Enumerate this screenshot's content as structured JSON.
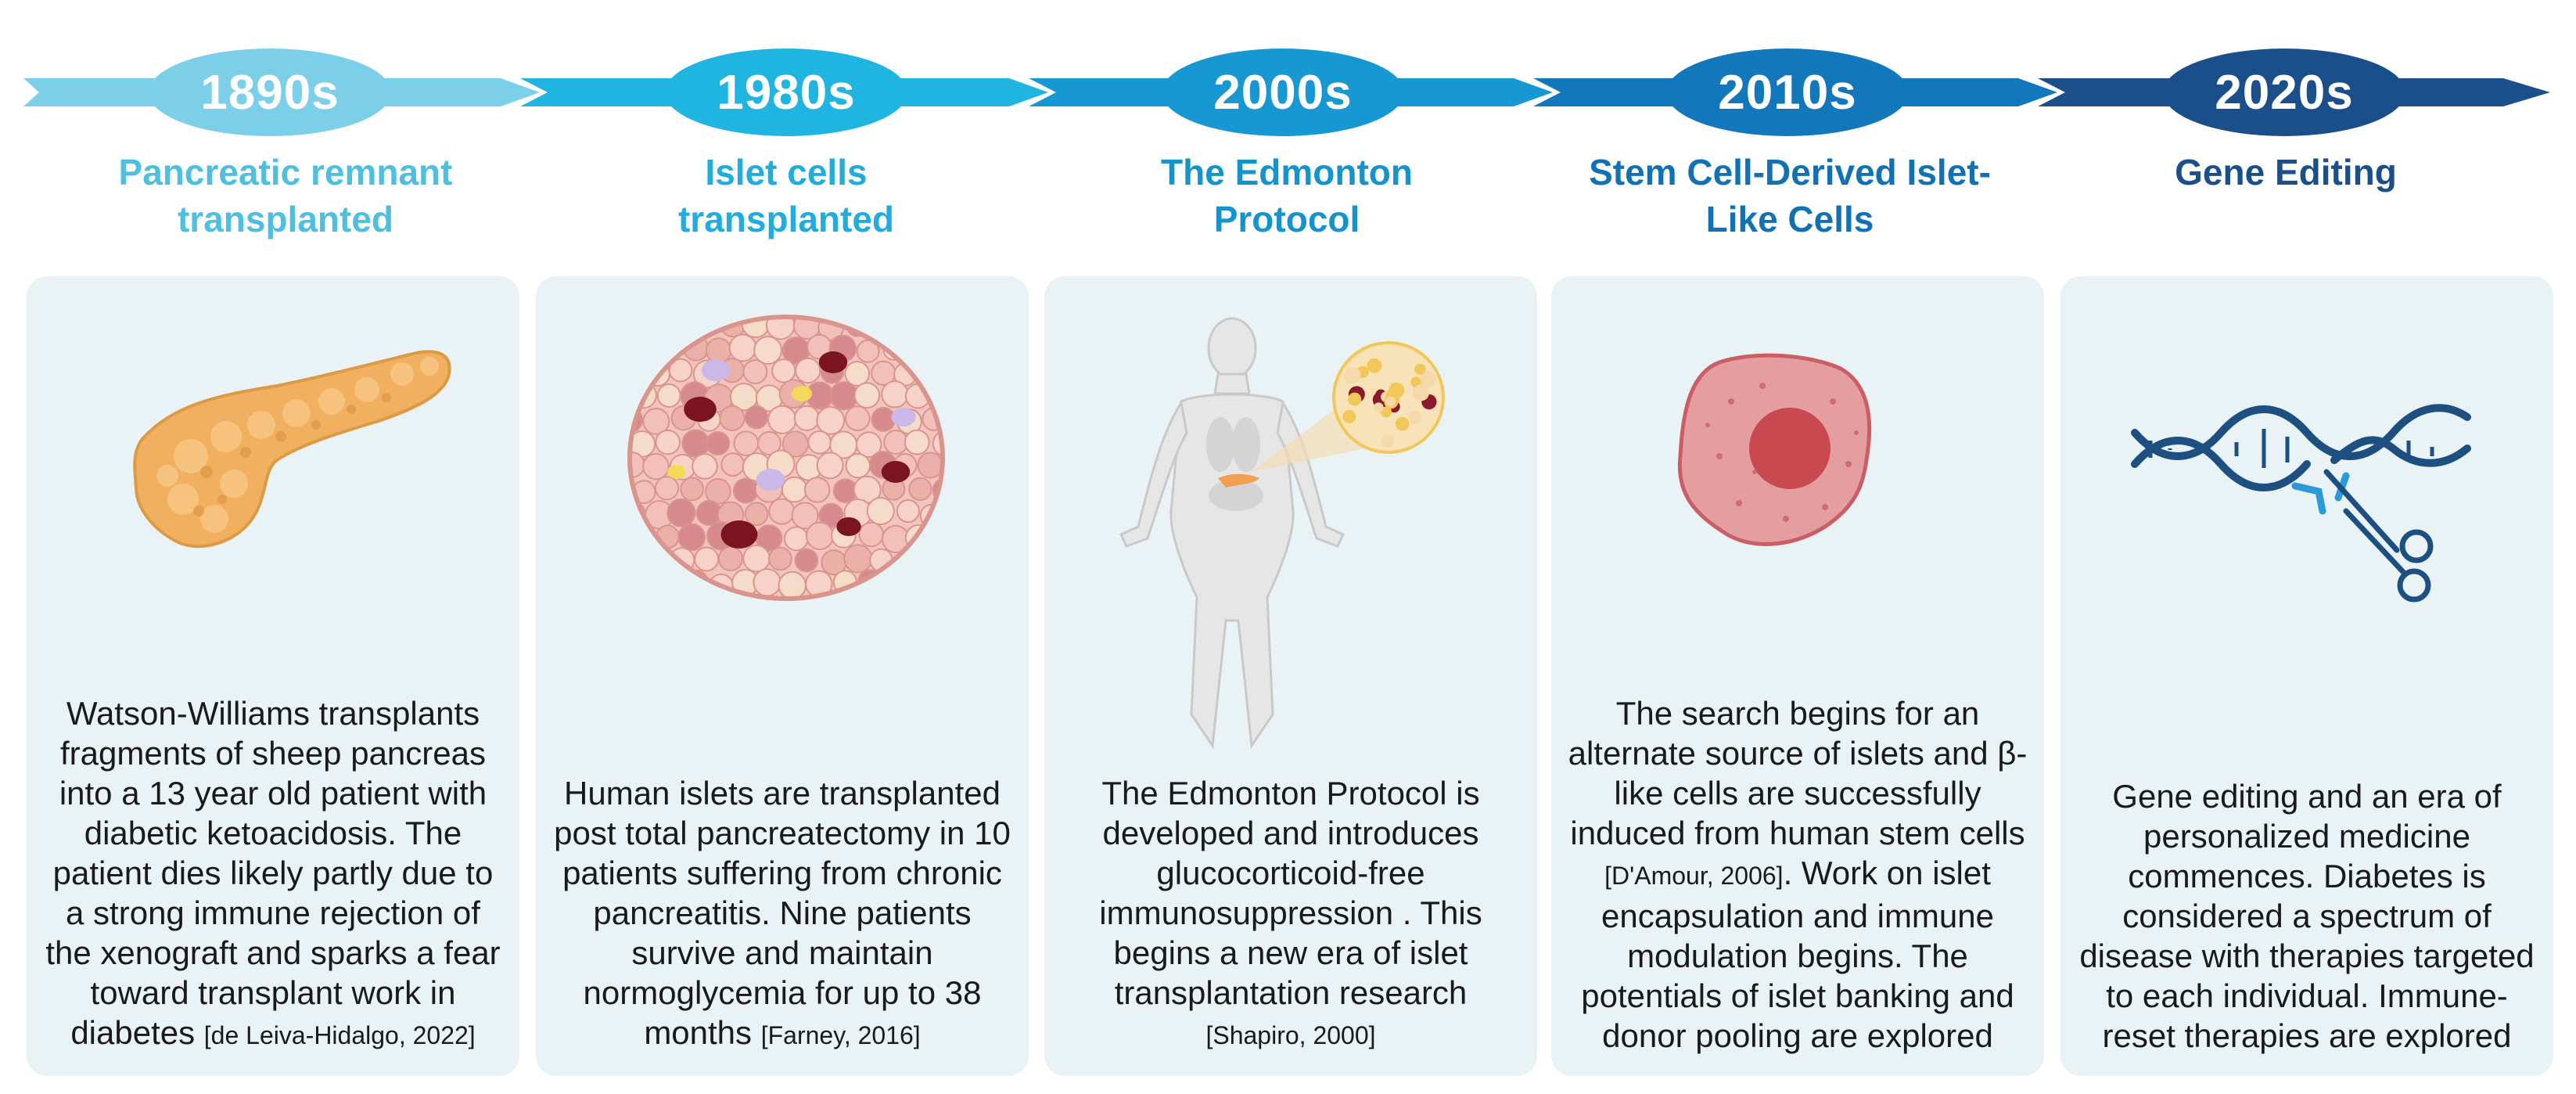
{
  "periods": [
    {
      "year": "1890s",
      "title": "Pancreatic remnant transplanted",
      "color": "#4fbfe0",
      "description": "Watson-Williams transplants fragments of sheep pancreas into a 13 year old patient with diabetic ketoacidosis. The patient dies likely partly due to a strong immune rejection of the xenograft and sparks a fear toward transplant work in diabetes",
      "citation": "[de Leiva-Hidalgo, 2022]",
      "illustration": "pancreas"
    },
    {
      "year": "1980s",
      "title": "Islet  cells transplanted",
      "color": "#20acdc",
      "description": "Human islets are transplanted post total pancreatectomy in 10 patients suffering from chronic pancreatitis. Nine patients survive and maintain normoglycemia for up to 38 months",
      "citation": "[Farney, 2016]",
      "illustration": "islet-cluster"
    },
    {
      "year": "2000s",
      "title": "The Edmonton Protocol",
      "color": "#1593cc",
      "description": "The Edmonton Protocol is developed and introduces glucocorticoid-free immunosuppression . This begins a new era of islet transplantation research",
      "citation": "[Shapiro, 2000]",
      "illustration": "human-body-with-islets"
    },
    {
      "year": "2010s",
      "title": "Stem Cell-Derived Islet-Like Cells",
      "color": "#1072b5",
      "description_parts": [
        "The search begins for an alternate source of islets and β-like cells are successfully induced from human stem cells",
        "Work on islet encapsulation and immune modulation begins. The potentials of islet banking and donor pooling are explored"
      ],
      "citation": "[D'Amour, 2006]",
      "illustration": "stem-cell"
    },
    {
      "year": "2020s",
      "title": "Gene Editing",
      "color": "#1a4f8c",
      "description": "Gene editing and an era of personalized medicine commences. Diabetes is considered a spectrum of disease with therapies targeted to each individual. Immune-reset therapies are explored",
      "citation": "",
      "illustration": "dna-scissors"
    }
  ]
}
